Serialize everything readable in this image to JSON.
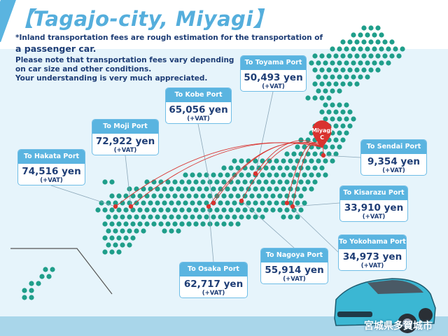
{
  "title": "【Tagajo-city, Miyagi】",
  "notes": [
    "*Inland transportation fees are rough estimation for the transportation of",
    "a passenger car.",
    "Please note that transportation fees vary depending",
    "on car size and other conditions.",
    "Your understanding is very much appreciated."
  ],
  "origin": {
    "label": "Miyagi",
    "sublabel": "C"
  },
  "ports": [
    {
      "name": "To Hakata Port",
      "fee": "74,516 yen",
      "vat": "(+VAT)"
    },
    {
      "name": "To Moji Port",
      "fee": "72,922 yen",
      "vat": "(+VAT)"
    },
    {
      "name": "To Kobe Port",
      "fee": "65,056 yen",
      "vat": "(+VAT)"
    },
    {
      "name": "To Toyama Port",
      "fee": "50,493 yen",
      "vat": "(+VAT)"
    },
    {
      "name": "To Sendai Port",
      "fee": "9,354 yen",
      "vat": "(+VAT)"
    },
    {
      "name": "To Kisarazu Port",
      "fee": "33,910 yen",
      "vat": "(+VAT)"
    },
    {
      "name": "To Yokohama Port",
      "fee": "34,973 yen",
      "vat": "(+VAT)"
    },
    {
      "name": "To Nagoya Port",
      "fee": "55,914 yen",
      "vat": "(+VAT)"
    },
    {
      "name": "To Osaka Port",
      "fee": "62,717 yen",
      "vat": "(+VAT)"
    }
  ],
  "city_label": "宮城県多賀城市",
  "colors": {
    "accent": "#5ab4e0",
    "text": "#1e3d75",
    "dots": "#1f9e8a",
    "route": "#d9332f"
  }
}
